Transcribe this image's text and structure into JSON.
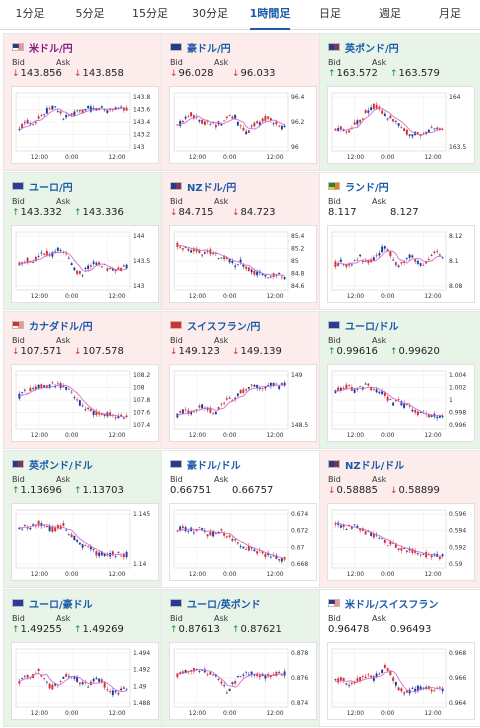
{
  "tabs": [
    {
      "label": "1分足",
      "active": false
    },
    {
      "label": "5分足",
      "active": false
    },
    {
      "label": "15分足",
      "active": false
    },
    {
      "label": "30分足",
      "active": false
    },
    {
      "label": "1時間足",
      "active": true
    },
    {
      "label": "日足",
      "active": false
    },
    {
      "label": "週足",
      "active": false
    },
    {
      "label": "月足",
      "active": false
    }
  ],
  "bid_label": "Bid",
  "ask_label": "Ask",
  "colors": {
    "up": "#1a8a2a",
    "down": "#d03030",
    "ma": "#d070d0",
    "candle_up": "#d03030",
    "candle_down": "#1a3aa0"
  },
  "pairs": [
    {
      "title": "米ドル/円",
      "flag": "us-flag",
      "bg": "pink",
      "title_color": "purple",
      "dir": "down",
      "bid": "143.856",
      "ask": "143.858",
      "yticks": [
        "143.8",
        "143.6",
        "143.4",
        "143.2",
        "143"
      ],
      "xticks": [
        "12:00",
        "0:00",
        "12:00"
      ],
      "trend": [
        0.35,
        0.55,
        0.5,
        0.6,
        0.7,
        0.85,
        0.8,
        0.6,
        0.65,
        0.7,
        0.75,
        0.8,
        0.78,
        0.82,
        0.76,
        0.8,
        0.84,
        0.78
      ]
    },
    {
      "title": "豪ドル/円",
      "flag": "au-flag",
      "bg": "pink",
      "title_color": "blue",
      "dir": "down",
      "bid": "96.028",
      "ask": "96.033",
      "yticks": [
        "96.4",
        "96.2",
        "96"
      ],
      "xticks": [
        "12:00",
        "0:00",
        "12:00"
      ],
      "trend": [
        0.45,
        0.55,
        0.7,
        0.6,
        0.5,
        0.55,
        0.45,
        0.5,
        0.6,
        0.65,
        0.4,
        0.3,
        0.45,
        0.5,
        0.6,
        0.55,
        0.45,
        0.4
      ]
    },
    {
      "title": "英ポンド/円",
      "flag": "gb-flag",
      "bg": "green",
      "title_color": "blue",
      "dir": "up",
      "bid": "163.572",
      "ask": "163.579",
      "yticks": [
        "164",
        "163.5"
      ],
      "xticks": [
        "12:00",
        "0:00",
        "12:00"
      ],
      "trend": [
        0.35,
        0.4,
        0.3,
        0.5,
        0.55,
        0.75,
        0.85,
        0.8,
        0.65,
        0.6,
        0.5,
        0.35,
        0.2,
        0.3,
        0.25,
        0.35,
        0.4,
        0.38
      ]
    },
    {
      "title": "ユーロ/円",
      "flag": "eu-flag",
      "bg": "green",
      "title_color": "blue",
      "dir": "up",
      "bid": "143.332",
      "ask": "143.336",
      "yticks": [
        "144",
        "143.5",
        "143"
      ],
      "xticks": [
        "12:00",
        "0:00",
        "12:00"
      ],
      "trend": [
        0.45,
        0.55,
        0.5,
        0.6,
        0.7,
        0.65,
        0.75,
        0.7,
        0.55,
        0.3,
        0.25,
        0.4,
        0.5,
        0.45,
        0.35,
        0.3,
        0.35,
        0.4
      ]
    },
    {
      "title": "NZドル/円",
      "flag": "nz-flag",
      "bg": "pink",
      "title_color": "blue",
      "dir": "down",
      "bid": "84.715",
      "ask": "84.723",
      "yticks": [
        "85.4",
        "85.2",
        "85",
        "84.8",
        "84.6"
      ],
      "xticks": [
        "12:00",
        "0:00",
        "12:00"
      ],
      "trend": [
        0.85,
        0.8,
        0.75,
        0.78,
        0.7,
        0.72,
        0.65,
        0.6,
        0.55,
        0.45,
        0.5,
        0.35,
        0.3,
        0.25,
        0.2,
        0.25,
        0.22,
        0.2
      ]
    },
    {
      "title": "ランド/円",
      "flag": "za-flag",
      "bg": "white",
      "title_color": "blue",
      "dir": "none",
      "bid": "8.117",
      "ask": "8.127",
      "yticks": [
        "8.12",
        "8.1",
        "8.08"
      ],
      "xticks": [
        "12:00",
        "0:00",
        "12:00"
      ],
      "trend": [
        0.45,
        0.5,
        0.4,
        0.55,
        0.6,
        0.45,
        0.55,
        0.7,
        0.85,
        0.6,
        0.4,
        0.55,
        0.65,
        0.5,
        0.45,
        0.6,
        0.7,
        0.55
      ]
    },
    {
      "title": "カナダドル/円",
      "flag": "ca-flag",
      "bg": "pink",
      "title_color": "blue",
      "dir": "down",
      "bid": "107.571",
      "ask": "107.578",
      "yticks": [
        "108.2",
        "108",
        "107.8",
        "107.6",
        "107.4"
      ],
      "xticks": [
        "12:00",
        "0:00",
        "12:00"
      ],
      "trend": [
        0.6,
        0.7,
        0.75,
        0.8,
        0.78,
        0.82,
        0.85,
        0.8,
        0.75,
        0.55,
        0.4,
        0.3,
        0.25,
        0.2,
        0.22,
        0.18,
        0.15,
        0.18
      ]
    },
    {
      "title": "スイスフラン/円",
      "flag": "ch-flag",
      "bg": "pink",
      "title_color": "blue",
      "dir": "down",
      "bid": "149.123",
      "ask": "149.139",
      "yticks": [
        "149",
        "148.5"
      ],
      "xticks": [
        "12:00",
        "0:00",
        "12:00"
      ],
      "trend": [
        0.2,
        0.3,
        0.25,
        0.35,
        0.4,
        0.3,
        0.25,
        0.45,
        0.55,
        0.5,
        0.7,
        0.75,
        0.8,
        0.78,
        0.82,
        0.85,
        0.8,
        0.83
      ]
    },
    {
      "title": "ユーロ/ドル",
      "flag": "eu-flag",
      "bg": "green",
      "title_color": "blue",
      "dir": "up",
      "bid": "0.99616",
      "ask": "0.99620",
      "yticks": [
        "1.004",
        "1.002",
        "1",
        "0.998",
        "0.996"
      ],
      "xticks": [
        "12:00",
        "0:00",
        "12:00"
      ],
      "trend": [
        0.7,
        0.75,
        0.8,
        0.72,
        0.78,
        0.82,
        0.75,
        0.7,
        0.6,
        0.45,
        0.5,
        0.4,
        0.35,
        0.25,
        0.2,
        0.22,
        0.18,
        0.2
      ]
    },
    {
      "title": "英ポンド/ドル",
      "flag": "gb-flag",
      "bg": "green",
      "title_color": "blue",
      "dir": "up",
      "bid": "1.13696",
      "ask": "1.13703",
      "yticks": [
        "1.145",
        "1.14"
      ],
      "xticks": [
        "12:00",
        "0:00",
        "12:00"
      ],
      "trend": [
        0.75,
        0.8,
        0.78,
        0.85,
        0.8,
        0.72,
        0.75,
        0.8,
        0.6,
        0.5,
        0.4,
        0.35,
        0.25,
        0.2,
        0.18,
        0.22,
        0.2,
        0.2
      ]
    },
    {
      "title": "豪ドル/ドル",
      "flag": "au-flag",
      "bg": "white",
      "title_color": "blue",
      "dir": "none",
      "bid": "0.66751",
      "ask": "0.66757",
      "yticks": [
        "0.674",
        "0.672",
        "0.67",
        "0.668"
      ],
      "xticks": [
        "12:00",
        "0:00",
        "12:00"
      ],
      "trend": [
        0.7,
        0.75,
        0.72,
        0.68,
        0.75,
        0.6,
        0.65,
        0.7,
        0.55,
        0.5,
        0.4,
        0.35,
        0.3,
        0.25,
        0.2,
        0.15,
        0.12,
        0.1
      ]
    },
    {
      "title": "NZドル/ドル",
      "flag": "nz-flag",
      "bg": "pink",
      "title_color": "blue",
      "dir": "down",
      "bid": "0.58885",
      "ask": "0.58899",
      "yticks": [
        "0.596",
        "0.594",
        "0.592",
        "0.59"
      ],
      "xticks": [
        "12:00",
        "0:00",
        "12:00"
      ],
      "trend": [
        0.85,
        0.8,
        0.75,
        0.78,
        0.7,
        0.65,
        0.6,
        0.55,
        0.45,
        0.4,
        0.35,
        0.3,
        0.28,
        0.22,
        0.2,
        0.18,
        0.15,
        0.15
      ]
    },
    {
      "title": "ユーロ/豪ドル",
      "flag": "eu-flag",
      "bg": "green",
      "title_color": "blue",
      "dir": "up",
      "bid": "1.49255",
      "ask": "1.49269",
      "yticks": [
        "1.494",
        "1.492",
        "1.49",
        "1.488"
      ],
      "xticks": [
        "12:00",
        "0:00",
        "12:00"
      ],
      "trend": [
        0.45,
        0.6,
        0.55,
        0.7,
        0.5,
        0.3,
        0.4,
        0.55,
        0.6,
        0.5,
        0.4,
        0.35,
        0.5,
        0.45,
        0.3,
        0.2,
        0.25,
        0.3
      ]
    },
    {
      "title": "ユーロ/英ポンド",
      "flag": "eu-flag",
      "bg": "green",
      "title_color": "blue",
      "dir": "up",
      "bid": "0.87613",
      "ask": "0.87621",
      "yticks": [
        "0.878",
        "0.876",
        "0.874"
      ],
      "xticks": [
        "12:00",
        "0:00",
        "12:00"
      ],
      "trend": [
        0.6,
        0.65,
        0.7,
        0.68,
        0.72,
        0.6,
        0.55,
        0.4,
        0.2,
        0.45,
        0.55,
        0.6,
        0.62,
        0.58,
        0.55,
        0.6,
        0.62,
        0.6
      ]
    },
    {
      "title": "米ドル/スイスフラン",
      "flag": "us-flag",
      "bg": "white",
      "title_color": "blue",
      "dir": "none",
      "bid": "0.96478",
      "ask": "0.96493",
      "yticks": [
        "0.968",
        "0.966",
        "0.964"
      ],
      "xticks": [
        "12:00",
        "0:00",
        "12:00"
      ],
      "trend": [
        0.45,
        0.5,
        0.4,
        0.45,
        0.5,
        0.55,
        0.5,
        0.6,
        0.8,
        0.55,
        0.3,
        0.2,
        0.25,
        0.3,
        0.35,
        0.3,
        0.28,
        0.3
      ]
    }
  ]
}
